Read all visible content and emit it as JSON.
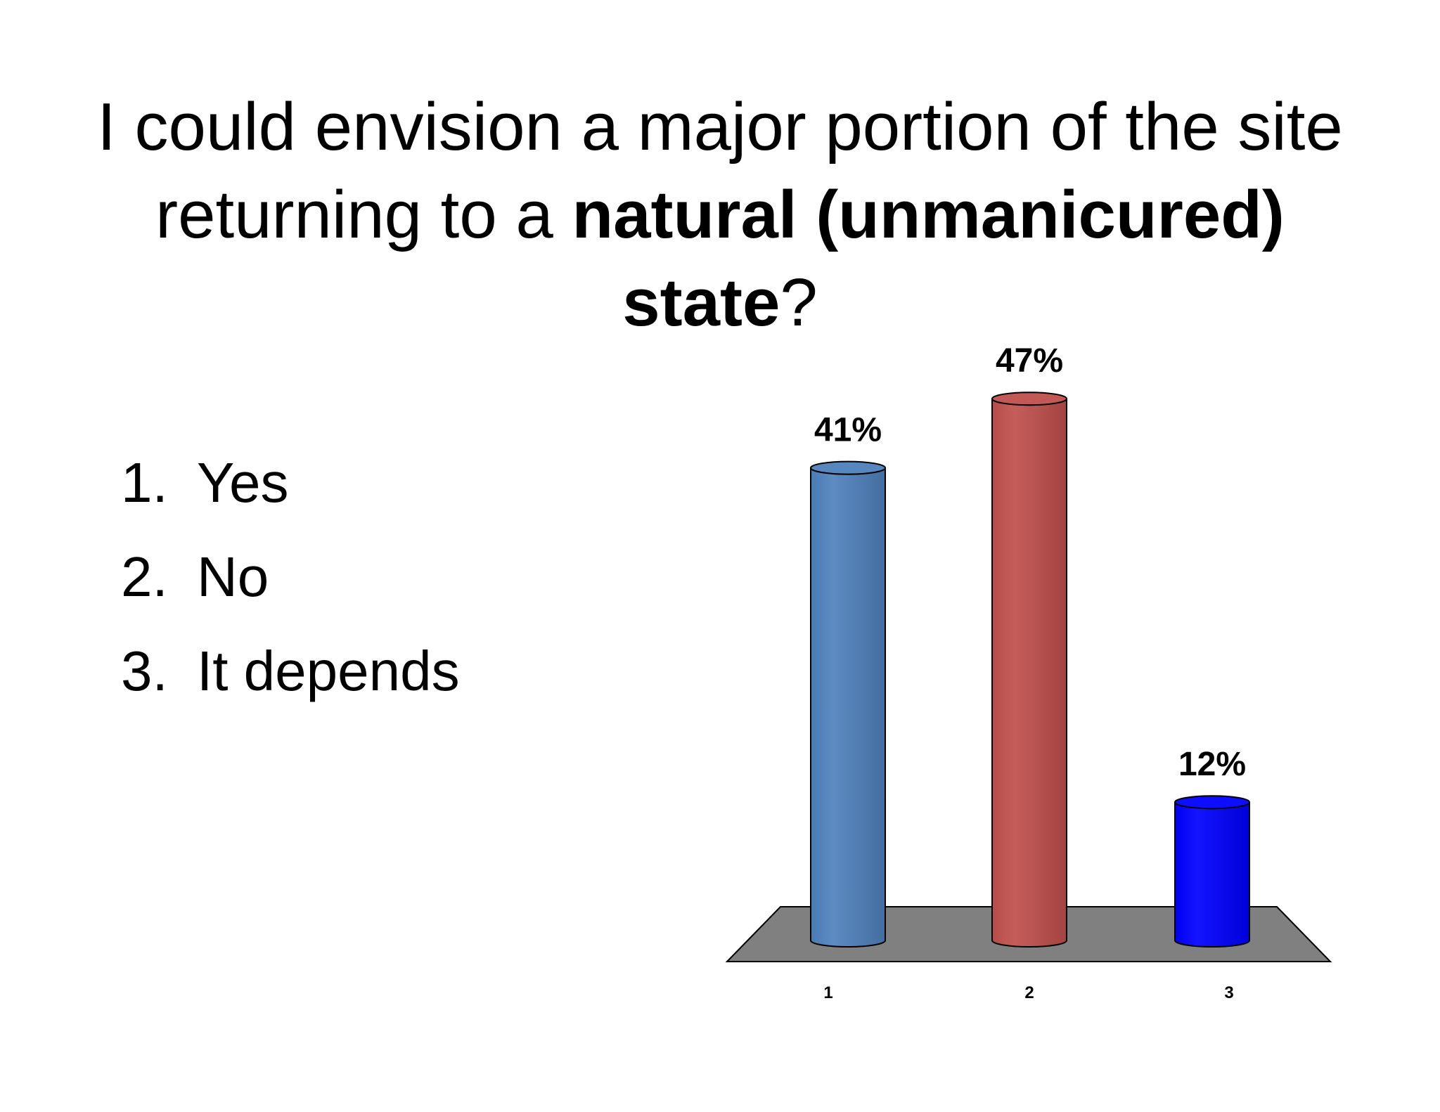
{
  "title": {
    "part1": "I could envision a major portion of the site returning to a ",
    "bold1": "natural (unmanicured) state",
    "part2": "?"
  },
  "options": [
    {
      "number": "1.",
      "label": "Yes"
    },
    {
      "number": "2.",
      "label": "No"
    },
    {
      "number": "3.",
      "label": "It depends"
    }
  ],
  "chart_data": {
    "type": "bar",
    "categories": [
      "1",
      "2",
      "3"
    ],
    "values": [
      41,
      47,
      12
    ],
    "data_labels": [
      "41%",
      "47%",
      "12%"
    ],
    "ylim": [
      0,
      50
    ],
    "grid": false,
    "style": "3d-cylinder",
    "colors": [
      "#4F81BD",
      "#C0504D",
      "#0000FF"
    ],
    "floor_color": "#808080"
  }
}
